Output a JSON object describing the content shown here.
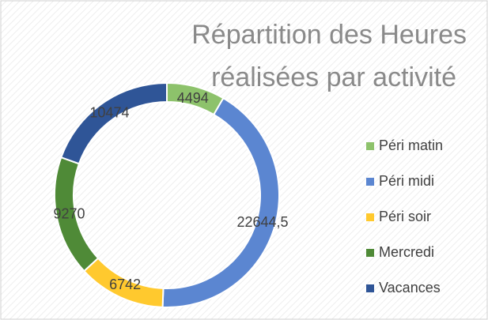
{
  "chart_data": {
    "type": "donut",
    "title": "Répartition des Heures réalisées par activité",
    "categories": [
      "Péri matin",
      "Péri midi",
      "Péri soir",
      "Mercredi",
      "Vacances"
    ],
    "values": [
      4494,
      22644.5,
      6742,
      9270,
      10474
    ],
    "value_labels": [
      "4494",
      "22644,5",
      "6742",
      "9270",
      "10474"
    ],
    "colors": [
      "#8dc26b",
      "#5b86d1",
      "#ffc92e",
      "#4f8a37",
      "#2f5597"
    ],
    "legend": "right"
  }
}
